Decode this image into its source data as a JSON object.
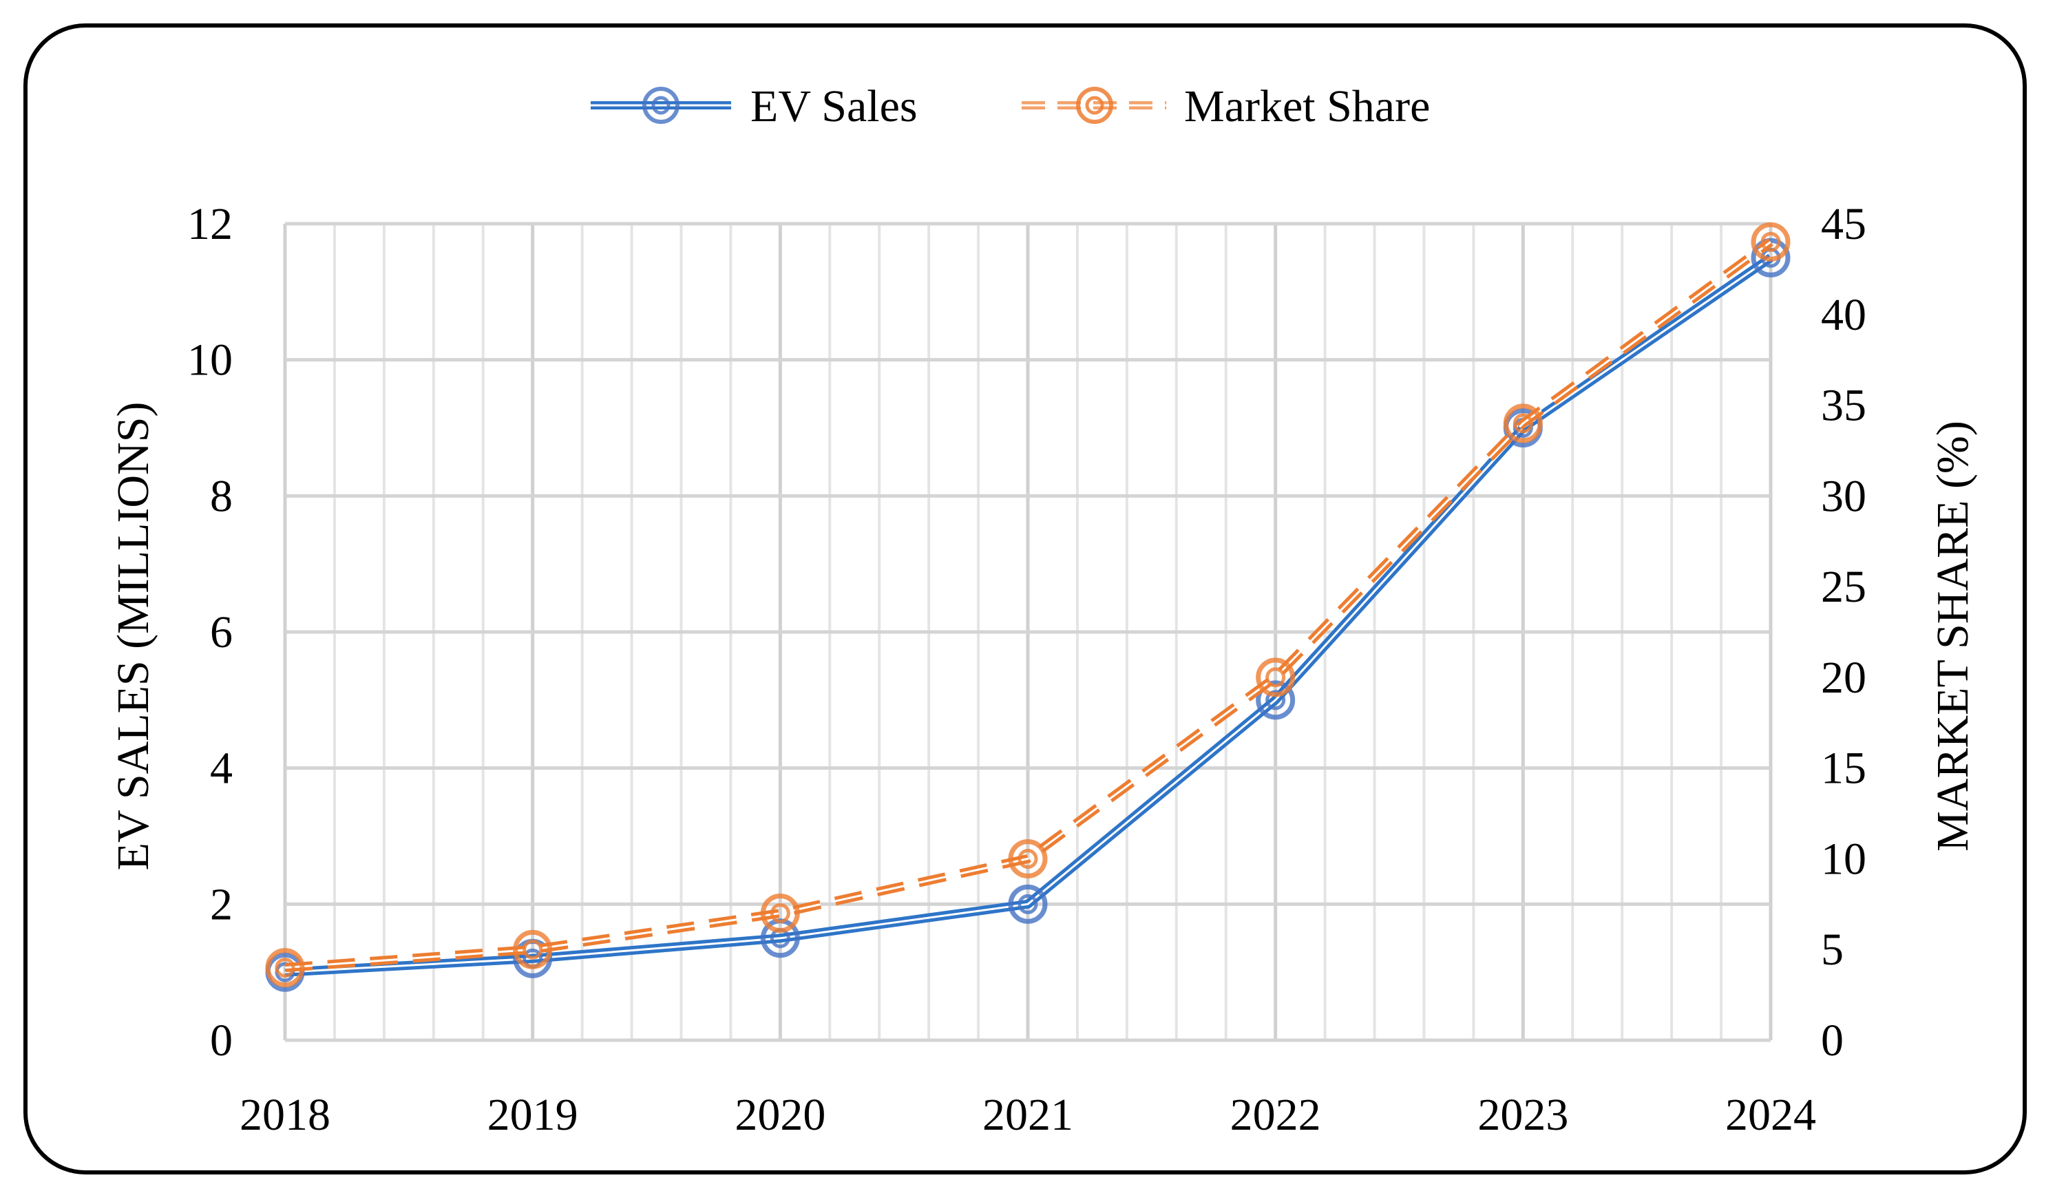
{
  "chart_data": {
    "type": "line",
    "title": "",
    "x": [
      "2018",
      "2019",
      "2020",
      "2021",
      "2022",
      "2023",
      "2024"
    ],
    "xlabel": "",
    "ylabel": "EV SALES (MILLIONS)",
    "ylabel_right": "MARKET SHARE (%)",
    "ylim": [
      0,
      12
    ],
    "ylim_right": [
      0,
      45
    ],
    "yticks": [
      "0",
      "2",
      "4",
      "6",
      "8",
      "10",
      "12"
    ],
    "yticks_right": [
      "0",
      "5",
      "10",
      "15",
      "20",
      "25",
      "30",
      "35",
      "40",
      "45"
    ],
    "grid": true,
    "legend_position": "top-center",
    "series": [
      {
        "name": "EV Sales",
        "axis": "left",
        "style": "solid-double",
        "color": "#2E75C8",
        "values": [
          1.0,
          1.2,
          1.5,
          2.0,
          5.0,
          9.0,
          11.5
        ]
      },
      {
        "name": "Market Share",
        "axis": "right",
        "style": "dashed-double",
        "color": "#ED7D31",
        "values": [
          4,
          5,
          7,
          10,
          20,
          34,
          44
        ]
      }
    ]
  }
}
